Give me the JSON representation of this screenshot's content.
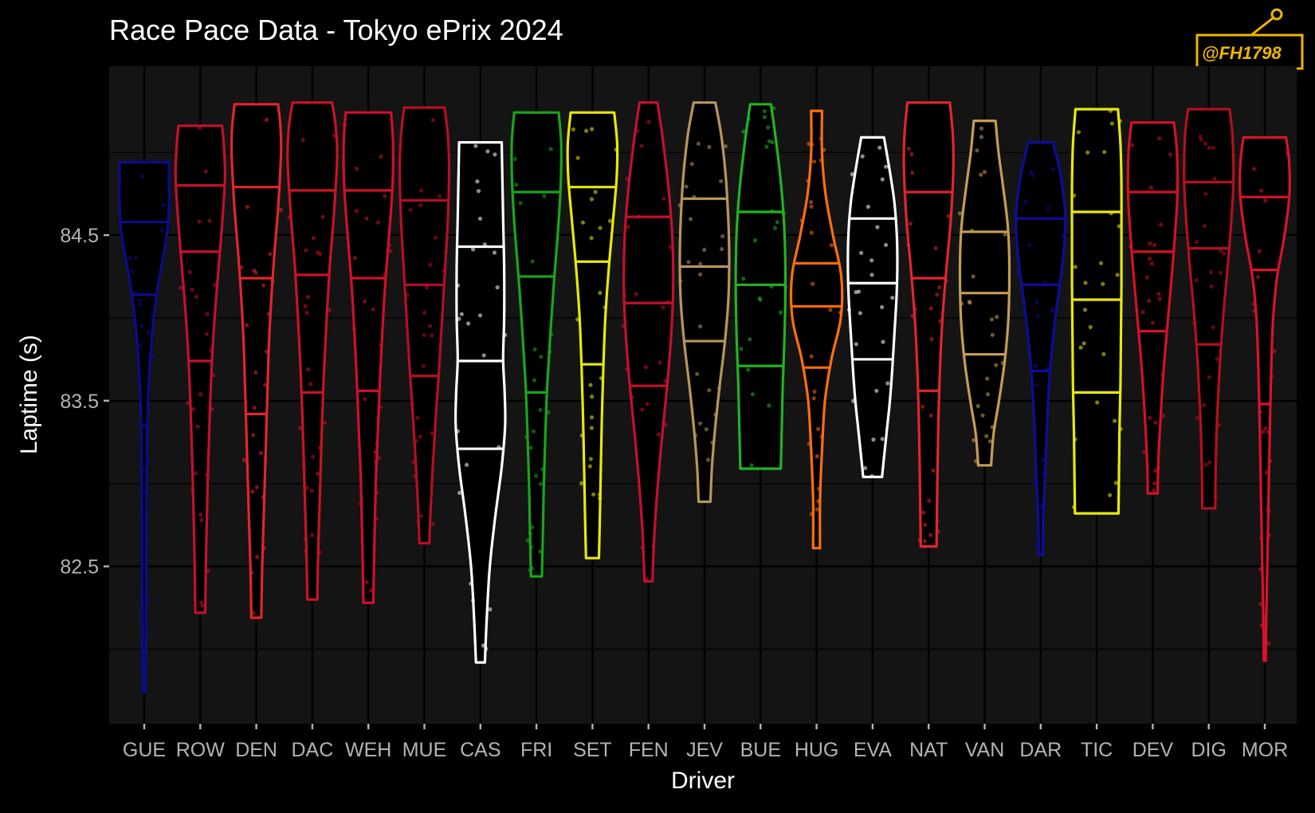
{
  "chart_data": {
    "type": "violin",
    "title": "Race Pace Data - Tokyo ePrix 2024",
    "xlabel": "Driver",
    "ylabel": "Laptime (s)",
    "y_ticks": [
      82.5,
      83.5,
      84.5
    ],
    "ylim": [
      81.55,
      85.52
    ],
    "grid": true,
    "watermark": "@FH1798",
    "background": "#141414",
    "violins": [
      {
        "driver": "GUE",
        "color": "#0b0b8c",
        "min": 81.74,
        "max": 84.94,
        "q1": 83.35,
        "median": 84.14,
        "q3": 84.58,
        "widths": [
          [
            84.94,
            1
          ],
          [
            84.85,
            1
          ],
          [
            84.7,
            1
          ],
          [
            84.55,
            0.95
          ],
          [
            84.4,
            0.8
          ],
          [
            84.2,
            0.56
          ],
          [
            84.0,
            0.38
          ],
          [
            83.8,
            0.26
          ],
          [
            83.5,
            0.15
          ],
          [
            83.2,
            0.11
          ],
          [
            82.8,
            0.09
          ],
          [
            82.4,
            0.08
          ],
          [
            82.0,
            0.06
          ],
          [
            81.74,
            0.04
          ]
        ]
      },
      {
        "driver": "ROW",
        "color": "#c4102e",
        "min": 82.22,
        "max": 85.16,
        "q1": 83.74,
        "median": 84.4,
        "q3": 84.8,
        "widths": [
          [
            85.16,
            0.88
          ],
          [
            85.05,
            0.95
          ],
          [
            84.85,
            1
          ],
          [
            84.6,
            0.9
          ],
          [
            84.3,
            0.74
          ],
          [
            84.0,
            0.58
          ],
          [
            83.7,
            0.46
          ],
          [
            83.4,
            0.38
          ],
          [
            83.0,
            0.3
          ],
          [
            82.6,
            0.24
          ],
          [
            82.22,
            0.2
          ]
        ]
      },
      {
        "driver": "DEN",
        "color": "#e2252d",
        "min": 82.19,
        "max": 85.29,
        "q1": 83.42,
        "median": 84.24,
        "q3": 84.79,
        "widths": [
          [
            85.29,
            0.88
          ],
          [
            85.15,
            0.98
          ],
          [
            85.0,
            1
          ],
          [
            84.7,
            0.9
          ],
          [
            84.4,
            0.74
          ],
          [
            84.1,
            0.6
          ],
          [
            83.8,
            0.5
          ],
          [
            83.5,
            0.44
          ],
          [
            83.2,
            0.38
          ],
          [
            82.8,
            0.3
          ],
          [
            82.5,
            0.24
          ],
          [
            82.19,
            0.2
          ]
        ]
      },
      {
        "driver": "DAC",
        "color": "#c91325",
        "min": 82.3,
        "max": 85.3,
        "q1": 83.55,
        "median": 84.26,
        "q3": 84.77,
        "widths": [
          [
            85.3,
            0.8
          ],
          [
            85.15,
            0.95
          ],
          [
            84.95,
            1
          ],
          [
            84.6,
            0.86
          ],
          [
            84.3,
            0.7
          ],
          [
            84.0,
            0.58
          ],
          [
            83.7,
            0.48
          ],
          [
            83.4,
            0.4
          ],
          [
            83.0,
            0.32
          ],
          [
            82.6,
            0.24
          ],
          [
            82.3,
            0.2
          ]
        ]
      },
      {
        "driver": "WEH",
        "color": "#d10f2a",
        "min": 82.28,
        "max": 85.24,
        "q1": 83.56,
        "median": 84.24,
        "q3": 84.77,
        "widths": [
          [
            85.24,
            0.92
          ],
          [
            85.05,
            1
          ],
          [
            84.8,
            0.98
          ],
          [
            84.5,
            0.84
          ],
          [
            84.2,
            0.68
          ],
          [
            83.9,
            0.56
          ],
          [
            83.6,
            0.46
          ],
          [
            83.3,
            0.38
          ],
          [
            83.0,
            0.3
          ],
          [
            82.6,
            0.24
          ],
          [
            82.28,
            0.2
          ]
        ]
      },
      {
        "driver": "MUE",
        "color": "#b50f24",
        "min": 82.64,
        "max": 85.27,
        "q1": 83.65,
        "median": 84.2,
        "q3": 84.71,
        "widths": [
          [
            85.27,
            0.82
          ],
          [
            85.1,
            0.95
          ],
          [
            84.9,
            1
          ],
          [
            84.6,
            0.95
          ],
          [
            84.3,
            0.84
          ],
          [
            84.0,
            0.72
          ],
          [
            83.7,
            0.6
          ],
          [
            83.4,
            0.46
          ],
          [
            83.1,
            0.34
          ],
          [
            82.8,
            0.24
          ],
          [
            82.64,
            0.2
          ]
        ]
      },
      {
        "driver": "CAS",
        "color": "#ffffff",
        "min": 81.92,
        "max": 85.06,
        "q1": 83.21,
        "median": 83.74,
        "q3": 84.43,
        "widths": [
          [
            85.06,
            0.86
          ],
          [
            84.9,
            0.88
          ],
          [
            84.6,
            0.92
          ],
          [
            84.3,
            0.96
          ],
          [
            84.0,
            0.96
          ],
          [
            83.75,
            0.92
          ],
          [
            83.55,
            0.98
          ],
          [
            83.35,
            1
          ],
          [
            83.1,
            0.86
          ],
          [
            82.8,
            0.6
          ],
          [
            82.5,
            0.38
          ],
          [
            82.2,
            0.26
          ],
          [
            81.92,
            0.18
          ]
        ]
      },
      {
        "driver": "FRI",
        "color": "#1aa51a",
        "min": 82.44,
        "max": 85.24,
        "q1": 83.55,
        "median": 84.25,
        "q3": 84.76,
        "widths": [
          [
            85.24,
            0.9
          ],
          [
            85.05,
            1
          ],
          [
            84.8,
            0.98
          ],
          [
            84.5,
            0.86
          ],
          [
            84.2,
            0.7
          ],
          [
            83.9,
            0.56
          ],
          [
            83.6,
            0.44
          ],
          [
            83.3,
            0.36
          ],
          [
            83.0,
            0.3
          ],
          [
            82.7,
            0.26
          ],
          [
            82.44,
            0.22
          ]
        ]
      },
      {
        "driver": "SET",
        "color": "#e8e80c",
        "min": 82.55,
        "max": 85.24,
        "q1": 83.72,
        "median": 84.34,
        "q3": 84.79,
        "widths": [
          [
            85.24,
            0.88
          ],
          [
            85.05,
            1
          ],
          [
            84.85,
            0.98
          ],
          [
            84.6,
            0.84
          ],
          [
            84.3,
            0.66
          ],
          [
            84.0,
            0.52
          ],
          [
            83.7,
            0.44
          ],
          [
            83.4,
            0.38
          ],
          [
            83.1,
            0.34
          ],
          [
            82.8,
            0.3
          ],
          [
            82.55,
            0.26
          ]
        ]
      },
      {
        "driver": "FEN",
        "color": "#c4102e",
        "min": 82.41,
        "max": 85.3,
        "q1": 83.59,
        "median": 84.09,
        "q3": 84.61,
        "widths": [
          [
            85.3,
            0.36
          ],
          [
            85.1,
            0.56
          ],
          [
            84.8,
            0.8
          ],
          [
            84.5,
            0.96
          ],
          [
            84.2,
            1
          ],
          [
            83.9,
            0.92
          ],
          [
            83.6,
            0.76
          ],
          [
            83.3,
            0.56
          ],
          [
            83.0,
            0.38
          ],
          [
            82.7,
            0.24
          ],
          [
            82.41,
            0.16
          ]
        ]
      },
      {
        "driver": "JEV",
        "color": "#b8965a",
        "min": 82.89,
        "max": 85.3,
        "q1": 83.86,
        "median": 84.31,
        "q3": 84.72,
        "widths": [
          [
            85.3,
            0.44
          ],
          [
            85.1,
            0.68
          ],
          [
            84.85,
            0.86
          ],
          [
            84.6,
            0.96
          ],
          [
            84.35,
            1
          ],
          [
            84.1,
            0.96
          ],
          [
            83.85,
            0.82
          ],
          [
            83.6,
            0.62
          ],
          [
            83.35,
            0.44
          ],
          [
            83.1,
            0.3
          ],
          [
            82.89,
            0.24
          ]
        ]
      },
      {
        "driver": "BUE",
        "color": "#22b322",
        "min": 83.09,
        "max": 85.29,
        "q1": 83.71,
        "median": 84.2,
        "q3": 84.64,
        "widths": [
          [
            85.29,
            0.42
          ],
          [
            85.1,
            0.6
          ],
          [
            84.85,
            0.8
          ],
          [
            84.6,
            0.94
          ],
          [
            84.35,
            1
          ],
          [
            84.1,
            1
          ],
          [
            83.85,
            0.96
          ],
          [
            83.6,
            0.9
          ],
          [
            83.35,
            0.86
          ],
          [
            83.09,
            0.82
          ]
        ]
      },
      {
        "driver": "HUG",
        "color": "#ff6e0c",
        "min": 82.61,
        "max": 85.25,
        "q1": 83.7,
        "median": 84.07,
        "q3": 84.33,
        "widths": [
          [
            85.25,
            0.22
          ],
          [
            85.0,
            0.22
          ],
          [
            84.75,
            0.36
          ],
          [
            84.5,
            0.66
          ],
          [
            84.25,
            1
          ],
          [
            84.0,
            0.98
          ],
          [
            83.75,
            0.6
          ],
          [
            83.5,
            0.34
          ],
          [
            83.2,
            0.22
          ],
          [
            82.9,
            0.14
          ],
          [
            82.61,
            0.14
          ]
        ]
      },
      {
        "driver": "EVA",
        "color": "#ffffff",
        "min": 83.04,
        "max": 85.09,
        "q1": 83.75,
        "median": 84.21,
        "q3": 84.6,
        "widths": [
          [
            85.09,
            0.46
          ],
          [
            84.9,
            0.68
          ],
          [
            84.7,
            0.88
          ],
          [
            84.5,
            0.98
          ],
          [
            84.3,
            1
          ],
          [
            84.1,
            0.96
          ],
          [
            83.9,
            0.88
          ],
          [
            83.7,
            0.8
          ],
          [
            83.5,
            0.7
          ],
          [
            83.3,
            0.56
          ],
          [
            83.04,
            0.38
          ]
        ]
      },
      {
        "driver": "NAT",
        "color": "#e2252d",
        "min": 82.62,
        "max": 85.3,
        "q1": 83.56,
        "median": 84.24,
        "q3": 84.76,
        "widths": [
          [
            85.3,
            0.86
          ],
          [
            85.1,
            0.98
          ],
          [
            84.9,
            1
          ],
          [
            84.6,
            0.9
          ],
          [
            84.3,
            0.72
          ],
          [
            84.0,
            0.56
          ],
          [
            83.7,
            0.46
          ],
          [
            83.4,
            0.4
          ],
          [
            83.1,
            0.36
          ],
          [
            82.85,
            0.34
          ],
          [
            82.62,
            0.32
          ]
        ]
      },
      {
        "driver": "VAN",
        "color": "#c69c55",
        "min": 83.11,
        "max": 85.19,
        "q1": 83.78,
        "median": 84.15,
        "q3": 84.52,
        "widths": [
          [
            85.19,
            0.44
          ],
          [
            85.0,
            0.56
          ],
          [
            84.8,
            0.74
          ],
          [
            84.55,
            0.94
          ],
          [
            84.3,
            1
          ],
          [
            84.0,
            0.96
          ],
          [
            83.75,
            0.82
          ],
          [
            83.5,
            0.58
          ],
          [
            83.3,
            0.36
          ],
          [
            83.11,
            0.26
          ]
        ]
      },
      {
        "driver": "DAR",
        "color": "#0d0d9a",
        "min": 82.57,
        "max": 85.06,
        "q1": 83.68,
        "median": 84.2,
        "q3": 84.6,
        "widths": [
          [
            85.06,
            0.5
          ],
          [
            84.85,
            0.82
          ],
          [
            84.6,
            1
          ],
          [
            84.35,
            0.9
          ],
          [
            84.1,
            0.68
          ],
          [
            83.85,
            0.48
          ],
          [
            83.6,
            0.34
          ],
          [
            83.3,
            0.24
          ],
          [
            83.0,
            0.16
          ],
          [
            82.8,
            0.1
          ],
          [
            82.57,
            0.08
          ]
        ]
      },
      {
        "driver": "TIC",
        "color": "#e8e80c",
        "min": 82.82,
        "max": 85.26,
        "q1": 83.55,
        "median": 84.11,
        "q3": 84.64,
        "widths": [
          [
            85.26,
            0.86
          ],
          [
            85.05,
            0.96
          ],
          [
            84.8,
            1
          ],
          [
            84.5,
            1
          ],
          [
            84.2,
            1
          ],
          [
            83.9,
            0.98
          ],
          [
            83.6,
            0.96
          ],
          [
            83.3,
            0.92
          ],
          [
            83.05,
            0.9
          ],
          [
            82.82,
            0.88
          ]
        ]
      },
      {
        "driver": "DEV",
        "color": "#d31126",
        "min": 82.94,
        "max": 85.18,
        "q1": 83.92,
        "median": 84.4,
        "q3": 84.76,
        "widths": [
          [
            85.18,
            0.86
          ],
          [
            85.0,
            0.98
          ],
          [
            84.75,
            1
          ],
          [
            84.5,
            0.9
          ],
          [
            84.2,
            0.74
          ],
          [
            83.9,
            0.56
          ],
          [
            83.6,
            0.4
          ],
          [
            83.3,
            0.28
          ],
          [
            83.1,
            0.22
          ],
          [
            82.94,
            0.2
          ]
        ]
      },
      {
        "driver": "DIG",
        "color": "#b50f1e",
        "min": 82.85,
        "max": 85.26,
        "q1": 83.84,
        "median": 84.42,
        "q3": 84.82,
        "widths": [
          [
            85.26,
            0.84
          ],
          [
            85.1,
            0.96
          ],
          [
            84.85,
            1
          ],
          [
            84.6,
            0.92
          ],
          [
            84.3,
            0.76
          ],
          [
            84.0,
            0.58
          ],
          [
            83.7,
            0.44
          ],
          [
            83.4,
            0.34
          ],
          [
            83.1,
            0.28
          ],
          [
            82.85,
            0.26
          ]
        ]
      },
      {
        "driver": "MOR",
        "color": "#d9132a",
        "min": 81.93,
        "max": 85.09,
        "q1": 83.48,
        "median": 84.29,
        "q3": 84.73,
        "widths": [
          [
            85.09,
            0.86
          ],
          [
            84.95,
            0.98
          ],
          [
            84.75,
            1
          ],
          [
            84.5,
            0.8
          ],
          [
            84.25,
            0.5
          ],
          [
            84.0,
            0.34
          ],
          [
            83.7,
            0.26
          ],
          [
            83.3,
            0.2
          ],
          [
            82.9,
            0.15
          ],
          [
            82.5,
            0.1
          ],
          [
            82.2,
            0.06
          ],
          [
            81.93,
            0.04
          ]
        ]
      }
    ]
  }
}
